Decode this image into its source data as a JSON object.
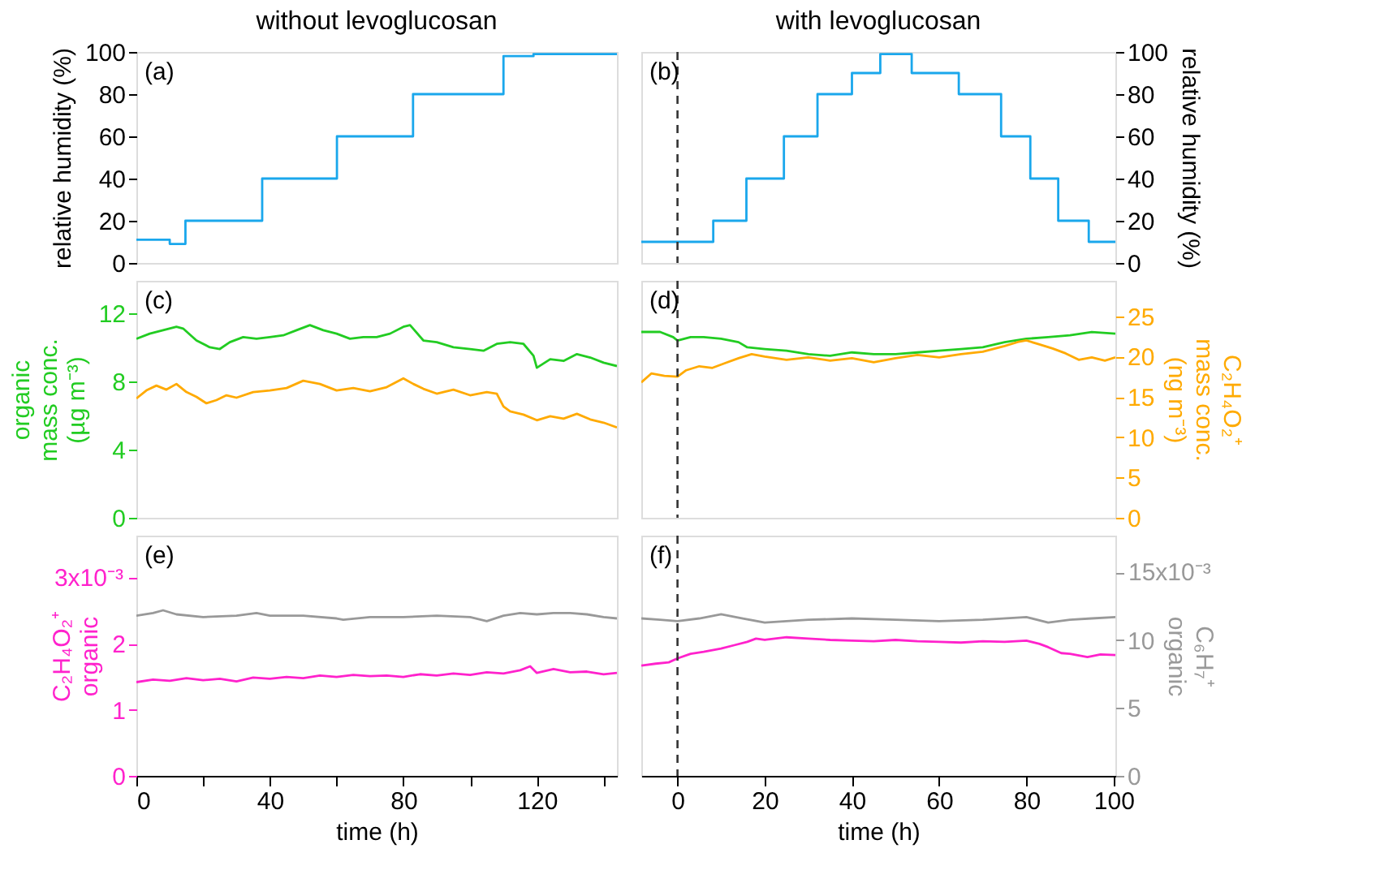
{
  "chart_data": [
    {
      "type": "line",
      "title": "without levoglucosan",
      "ylabel": "relative humidity (%)",
      "xlim": [
        0,
        144
      ],
      "ylim": [
        0,
        100
      ],
      "yticks": [
        0,
        20,
        40,
        60,
        80,
        100
      ],
      "tick_labels": [
        "y"
      ],
      "annotations": [
        "(a)"
      ],
      "series": [
        {
          "color": "#1aa7ec",
          "axis": "y",
          "x": [
            0,
            10,
            10,
            14.7,
            14.7,
            37.7,
            37.7,
            60.1,
            60.1,
            82.9,
            82.9,
            110,
            110,
            119,
            119,
            144
          ],
          "values": [
            11,
            11,
            9,
            9,
            20,
            20,
            40,
            40,
            60,
            60,
            80,
            80,
            98,
            98,
            99,
            99
          ]
        }
      ]
    },
    {
      "type": "line",
      "title": "with levoglucosan",
      "y2label": "relative humidity (%)",
      "xlim": [
        -8.3,
        100.4
      ],
      "y2lim": [
        0,
        100
      ],
      "y2ticks": [
        0,
        20,
        40,
        60,
        80,
        100
      ],
      "tick_labels": [
        "y2"
      ],
      "annotations": [
        "(b)"
      ],
      "ref_lines": [
        {
          "axis": "x",
          "value": 0,
          "color": "#333333",
          "line_style": "dashed"
        }
      ],
      "series": [
        {
          "color": "#1aa7ec",
          "axis": "y2",
          "x": [
            -8.3,
            8.2,
            8.2,
            15.8,
            15.8,
            24.4,
            24.4,
            32.1,
            32.1,
            40,
            40,
            46.5,
            46.5,
            53.7,
            53.7,
            64.5,
            64.5,
            74.2,
            74.2,
            80.9,
            80.9,
            87.3,
            87.3,
            94.3,
            94.3,
            100.4
          ],
          "values": [
            10,
            10,
            20,
            20,
            40,
            40,
            60,
            60,
            80,
            80,
            90,
            90,
            99,
            99,
            90,
            90,
            80,
            80,
            60,
            60,
            40,
            40,
            20,
            20,
            10,
            10
          ]
        }
      ]
    },
    {
      "type": "line",
      "ylabel": "organic\nmass conc.\n(µg m⁻³)",
      "xlim": [
        0,
        144
      ],
      "ylim": [
        0,
        13.9
      ],
      "yticks": [
        0,
        4,
        8,
        12
      ],
      "y2lim": [
        0,
        29.4
      ],
      "tick_labels": [
        "y"
      ],
      "annotations": [
        "(c)"
      ],
      "series": [
        {
          "color": "#22cc22",
          "axis": "y",
          "x": [
            0,
            4,
            8,
            12,
            14,
            18,
            22,
            25,
            28,
            32,
            36,
            40,
            44,
            48,
            52,
            56,
            60,
            64,
            68,
            72,
            76,
            80,
            82,
            86,
            90,
            95,
            100,
            104,
            108,
            112,
            116,
            119,
            120,
            124,
            128,
            132,
            136,
            140,
            144
          ],
          "values": [
            10.5,
            10.8,
            11.0,
            11.2,
            11.1,
            10.4,
            10.0,
            9.9,
            10.3,
            10.6,
            10.5,
            10.6,
            10.7,
            11.0,
            11.3,
            11.0,
            10.8,
            10.5,
            10.6,
            10.6,
            10.8,
            11.2,
            11.3,
            10.4,
            10.3,
            10.0,
            9.9,
            9.8,
            10.2,
            10.3,
            10.2,
            9.5,
            8.8,
            9.3,
            9.2,
            9.6,
            9.4,
            9.1,
            8.9
          ]
        },
        {
          "color": "#ffaa00",
          "axis": "y2",
          "x": [
            0,
            3,
            6,
            9,
            12,
            15,
            18,
            21,
            24,
            27,
            30,
            35,
            40,
            45,
            50,
            55,
            60,
            65,
            70,
            75,
            80,
            83,
            86,
            90,
            95,
            100,
            105,
            108,
            110,
            112,
            116,
            120,
            124,
            128,
            132,
            136,
            140,
            144
          ],
          "values": [
            14.8,
            15.8,
            16.4,
            15.9,
            16.6,
            15.6,
            15.0,
            14.2,
            14.6,
            15.2,
            14.9,
            15.6,
            15.8,
            16.1,
            17.0,
            16.6,
            15.8,
            16.1,
            15.7,
            16.2,
            17.3,
            16.6,
            16.0,
            15.4,
            15.9,
            15.2,
            15.6,
            15.4,
            13.8,
            13.2,
            12.8,
            12.1,
            12.6,
            12.3,
            12.9,
            12.2,
            11.8,
            11.2
          ]
        }
      ]
    },
    {
      "type": "line",
      "y2label": "C₂H₄O₂⁺\nmass conc.\n(ng m⁻³)",
      "xlim": [
        -8.3,
        100.4
      ],
      "ylim": [
        0,
        13.9
      ],
      "y2lim": [
        0,
        29.4
      ],
      "y2ticks": [
        0,
        5,
        10,
        15,
        20,
        25
      ],
      "tick_labels": [
        "y2"
      ],
      "annotations": [
        "(d)"
      ],
      "ref_lines": [
        {
          "axis": "x",
          "value": 0,
          "color": "#333333",
          "line_style": "dashed"
        }
      ],
      "series": [
        {
          "color": "#22cc22",
          "axis": "y",
          "x": [
            -8.3,
            -4,
            -1,
            0,
            3,
            6,
            10,
            14,
            16,
            20,
            25,
            30,
            35,
            40,
            45,
            50,
            55,
            60,
            65,
            70,
            75,
            80,
            85,
            90,
            95,
            100.4
          ],
          "values": [
            10.9,
            10.9,
            10.6,
            10.4,
            10.6,
            10.6,
            10.5,
            10.3,
            10.0,
            9.9,
            9.8,
            9.6,
            9.5,
            9.7,
            9.6,
            9.6,
            9.7,
            9.8,
            9.9,
            10.0,
            10.3,
            10.5,
            10.6,
            10.7,
            10.9,
            10.8
          ]
        },
        {
          "color": "#ffaa00",
          "axis": "y2",
          "x": [
            -8.3,
            -6,
            -3,
            0,
            2,
            5,
            8,
            11,
            14,
            17,
            20,
            25,
            30,
            35,
            40,
            45,
            50,
            55,
            60,
            65,
            70,
            75,
            78,
            80,
            83,
            86,
            89,
            92,
            95,
            98,
            100.4
          ],
          "values": [
            16.8,
            17.9,
            17.6,
            17.5,
            18.3,
            18.8,
            18.6,
            19.2,
            19.8,
            20.3,
            20.0,
            19.6,
            19.9,
            19.5,
            19.8,
            19.3,
            19.8,
            20.2,
            19.9,
            20.3,
            20.6,
            21.3,
            21.8,
            22.0,
            21.5,
            21.0,
            20.4,
            19.6,
            19.9,
            19.5,
            19.9
          ]
        }
      ]
    },
    {
      "type": "line",
      "xlabel": "time (h)",
      "ylabel": "C₂H₄O₂⁺\norganic",
      "xlim": [
        0,
        144
      ],
      "xticks": [
        0,
        {
          "value": 20,
          "label": null
        },
        40,
        {
          "value": 60,
          "label": null
        },
        80,
        {
          "value": 100,
          "label": null
        },
        120,
        {
          "value": 140,
          "label": null
        }
      ],
      "ylim": [
        0,
        3.64
      ],
      "yticks": [
        0,
        1,
        2,
        {
          "value": 3,
          "label": null
        }
      ],
      "y2lim": [
        0,
        17.7
      ],
      "tick_labels": [
        "x",
        "y"
      ],
      "annotations": [
        "(e)",
        "3x10⁻³"
      ],
      "series": [
        {
          "color": "#ff22cc",
          "axis": "y",
          "x": [
            0,
            5,
            10,
            15,
            20,
            25,
            30,
            35,
            40,
            45,
            50,
            55,
            60,
            65,
            70,
            75,
            80,
            85,
            90,
            95,
            100,
            105,
            110,
            115,
            118,
            120,
            125,
            130,
            135,
            140,
            144
          ],
          "values": [
            1.42,
            1.46,
            1.44,
            1.48,
            1.45,
            1.47,
            1.43,
            1.49,
            1.47,
            1.5,
            1.48,
            1.52,
            1.5,
            1.53,
            1.51,
            1.52,
            1.5,
            1.54,
            1.52,
            1.55,
            1.53,
            1.57,
            1.55,
            1.6,
            1.66,
            1.56,
            1.62,
            1.57,
            1.58,
            1.54,
            1.56
          ]
        },
        {
          "color": "#999999",
          "axis": "y2",
          "x": [
            0,
            5,
            8,
            12,
            20,
            30,
            36,
            40,
            50,
            60,
            62,
            70,
            80,
            90,
            100,
            105,
            110,
            115,
            120,
            125,
            130,
            135,
            140,
            144
          ],
          "values": [
            11.8,
            12.0,
            12.2,
            11.9,
            11.7,
            11.8,
            12.0,
            11.8,
            11.8,
            11.6,
            11.5,
            11.7,
            11.7,
            11.8,
            11.7,
            11.4,
            11.8,
            12.0,
            11.9,
            12.0,
            12.0,
            11.9,
            11.7,
            11.6
          ]
        }
      ]
    },
    {
      "type": "line",
      "xlabel": "time (h)",
      "y2label": "C₆H₇⁺\norganic",
      "xlim": [
        -8.3,
        100.4
      ],
      "xticks": [
        0,
        20,
        40,
        60,
        80,
        100
      ],
      "ylim": [
        0,
        3.64
      ],
      "y2lim": [
        0,
        17.7
      ],
      "y2ticks": [
        0,
        5,
        10,
        {
          "value": 15,
          "label": null
        }
      ],
      "tick_labels": [
        "x",
        "y2"
      ],
      "annotations": [
        "(f)",
        "15x10⁻³"
      ],
      "ref_lines": [
        {
          "axis": "x",
          "value": 0,
          "color": "#333333",
          "line_style": "dashed"
        }
      ],
      "series": [
        {
          "color": "#ff22cc",
          "axis": "y",
          "x": [
            -8.3,
            -5,
            -2,
            0,
            3,
            6,
            10,
            13,
            16,
            18,
            20,
            25,
            30,
            35,
            40,
            45,
            50,
            55,
            60,
            65,
            70,
            75,
            80,
            83,
            85,
            88,
            90,
            94,
            97,
            100.4
          ],
          "values": [
            1.67,
            1.7,
            1.72,
            1.78,
            1.85,
            1.88,
            1.93,
            1.98,
            2.03,
            2.08,
            2.06,
            2.1,
            2.08,
            2.06,
            2.05,
            2.04,
            2.06,
            2.04,
            2.03,
            2.02,
            2.04,
            2.03,
            2.05,
            2.0,
            1.95,
            1.86,
            1.85,
            1.8,
            1.84,
            1.83
          ]
        },
        {
          "color": "#999999",
          "axis": "y2",
          "x": [
            -8.3,
            -4,
            0,
            5,
            10,
            15,
            20,
            30,
            40,
            50,
            60,
            70,
            80,
            85,
            90,
            95,
            100.4
          ],
          "values": [
            11.6,
            11.5,
            11.4,
            11.6,
            11.9,
            11.6,
            11.3,
            11.5,
            11.6,
            11.5,
            11.4,
            11.5,
            11.7,
            11.3,
            11.5,
            11.6,
            11.7
          ]
        }
      ]
    }
  ]
}
